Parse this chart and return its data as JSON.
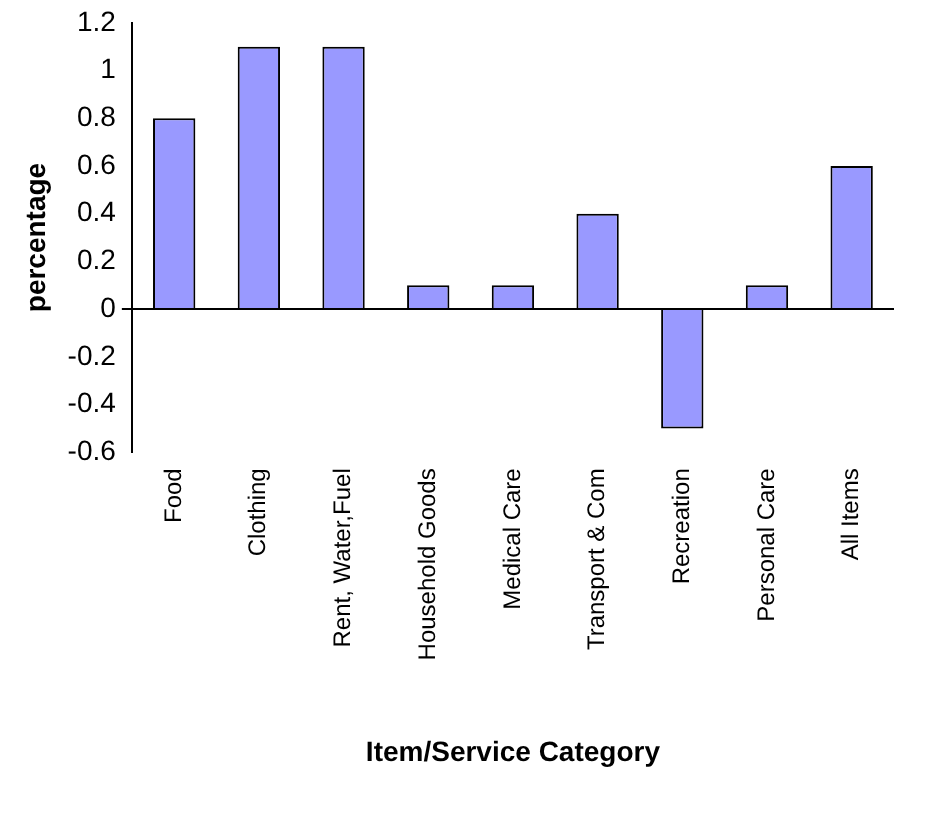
{
  "chart_data": {
    "type": "bar",
    "xlabel": "Item/Service Category",
    "ylabel": "percentage",
    "categories": [
      "Food",
      "Clothing",
      "Rent, Water,Fuel",
      "Household Goods",
      "Medical Care",
      "Transport & Com",
      "Recreation",
      "Personal Care",
      "All Items"
    ],
    "values": [
      0.8,
      1.1,
      1.1,
      0.1,
      0.1,
      0.4,
      -0.5,
      0.1,
      0.6
    ],
    "color": "#9999ff",
    "ylim": [
      -0.6,
      1.2
    ],
    "yticks": [
      -0.6,
      -0.4,
      -0.2,
      0,
      0.2,
      0.4,
      0.6,
      0.8,
      1,
      1.2
    ],
    "legend": false
  }
}
